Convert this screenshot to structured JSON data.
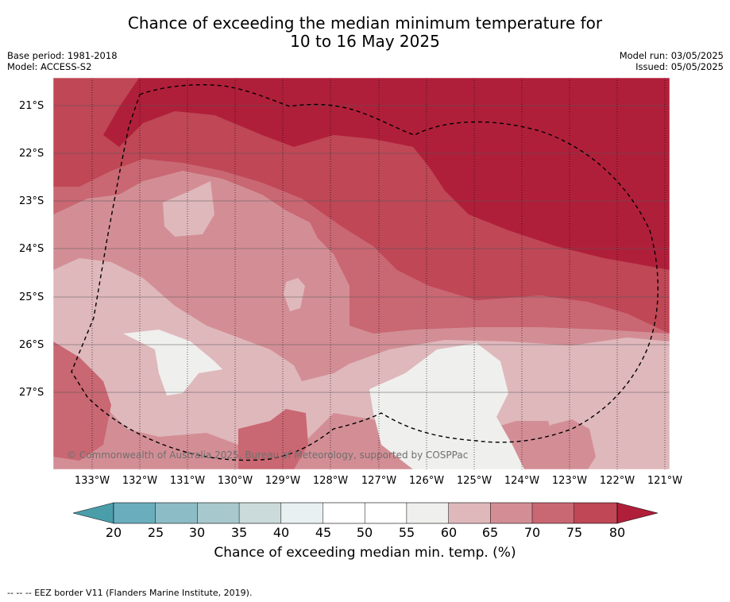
{
  "title_line1": "Chance of exceeding the median minimum temperature for",
  "title_line2": "10 to 16 May 2025",
  "base_period": "Base period: 1981-2018",
  "model": "Model: ACCESS-S2",
  "model_run": "Model run: 03/05/2025",
  "issued": "Issued: 05/05/2025",
  "copyright": "© Commonwealth of Australia 2025, Bureau of Meteorology, supported by COSPPac",
  "lat_labels": [
    "21°S",
    "22°S",
    "23°S",
    "24°S",
    "25°S",
    "26°S",
    "27°S"
  ],
  "lon_labels": [
    "133°W",
    "132°W",
    "131°W",
    "130°W",
    "129°W",
    "128°W",
    "127°W",
    "126°W",
    "125°W",
    "124°W",
    "123°W",
    "122°W",
    "121°W"
  ],
  "colorbar": {
    "ticks": [
      "20",
      "25",
      "30",
      "35",
      "40",
      "45",
      "50",
      "55",
      "60",
      "65",
      "70",
      "75",
      "80"
    ],
    "colors": [
      "#4a9eaa",
      "#6aaebd",
      "#8cbcc6",
      "#a7c8cc",
      "#cbdada",
      "#e9f0f2",
      "#ffffff",
      "#ffffff",
      "#efefee",
      "#dfb8bc",
      "#d38e95",
      "#c96772",
      "#bf4756",
      "#b01f3a"
    ],
    "label": "Chance of exceeding median min. temp. (%)"
  },
  "footnote": "--  --  -- EEZ border V11 (Flanders Marine Institute, 2019)."
}
